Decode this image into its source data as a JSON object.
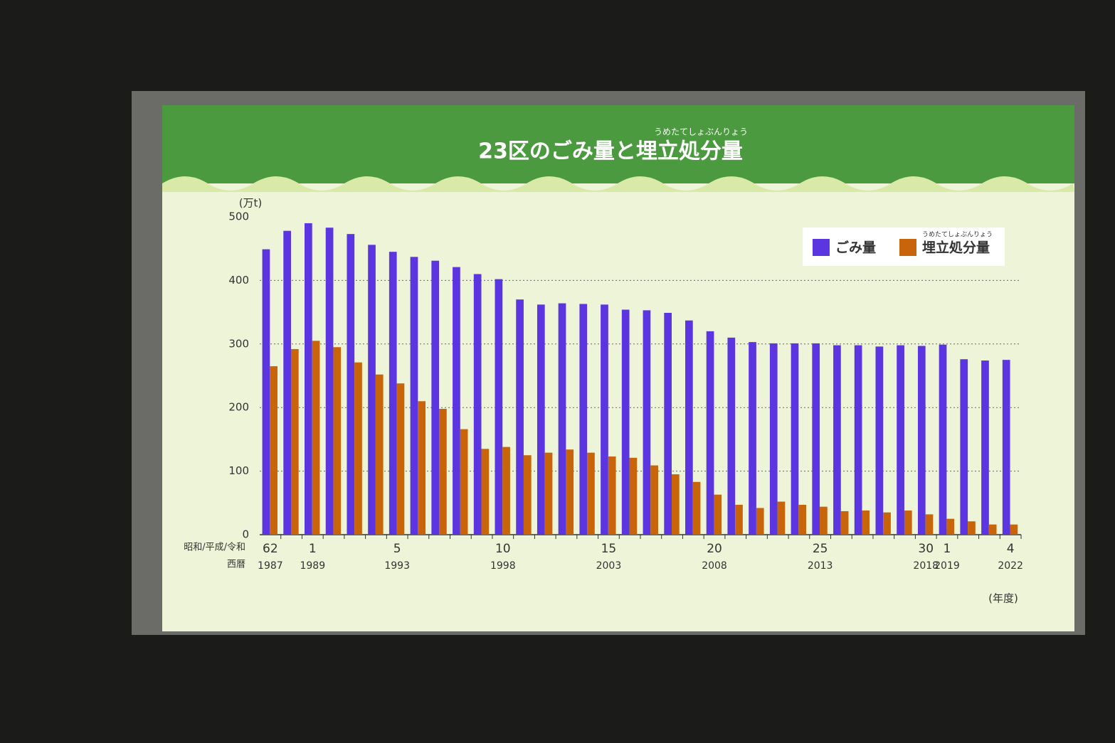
{
  "chart_data": {
    "type": "bar",
    "title": "23区のごみ量と埋立処分量",
    "title_ruby": "うめたてしょぶんりょう",
    "y_unit": "(万t)",
    "x_unit": "(年度)",
    "era_row_title": "昭和/平成/令和",
    "year_row_title": "西暦",
    "era_labels": [
      "62",
      null,
      "1",
      null,
      null,
      null,
      "5",
      null,
      null,
      null,
      null,
      "10",
      null,
      null,
      null,
      null,
      "15",
      null,
      null,
      null,
      null,
      "20",
      null,
      null,
      null,
      null,
      "25",
      null,
      null,
      null,
      null,
      "30",
      "1",
      null,
      null,
      "4"
    ],
    "categories": [
      "1987",
      null,
      "1989",
      null,
      null,
      null,
      "1993",
      null,
      null,
      null,
      null,
      "1998",
      null,
      null,
      null,
      null,
      "2003",
      null,
      null,
      null,
      null,
      "2008",
      null,
      null,
      null,
      null,
      "2013",
      null,
      null,
      null,
      null,
      "2018",
      "2019",
      null,
      null,
      "2022"
    ],
    "series": [
      {
        "name": "ごみ量",
        "color": "#5b35e0",
        "values": [
          449,
          478,
          490,
          483,
          473,
          456,
          445,
          437,
          431,
          421,
          410,
          402,
          370,
          362,
          364,
          363,
          362,
          354,
          353,
          349,
          337,
          320,
          310,
          303,
          301,
          301,
          301,
          298,
          298,
          296,
          298,
          297,
          299,
          276,
          274,
          275
        ]
      },
      {
        "name": "埋立処分量",
        "ruby": "うめたてしょぶんりょう",
        "color": "#c8650a",
        "values": [
          265,
          292,
          305,
          295,
          271,
          252,
          238,
          210,
          198,
          166,
          135,
          138,
          125,
          129,
          134,
          129,
          123,
          121,
          109,
          95,
          83,
          63,
          47,
          42,
          52,
          47,
          44,
          37,
          38,
          35,
          38,
          32,
          25,
          21,
          16,
          16
        ]
      }
    ],
    "ylim": [
      0,
      500
    ],
    "yticks": [
      0,
      100,
      200,
      300,
      400,
      500
    ],
    "grid": true
  }
}
